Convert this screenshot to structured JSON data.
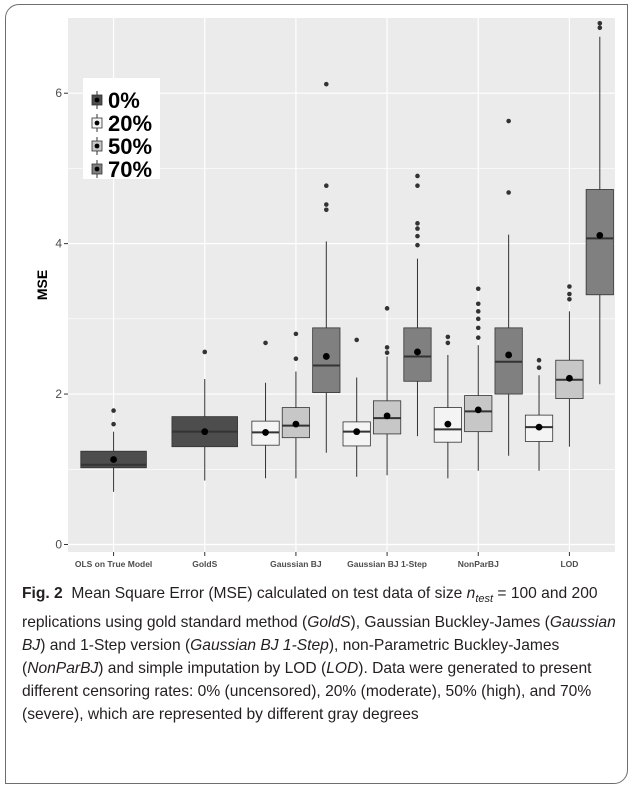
{
  "chart_data": {
    "type": "boxplot",
    "title": "",
    "xlabel": "",
    "ylabel": "MSE",
    "ylim": [
      -0.1,
      7.0
    ],
    "yticks": [
      0,
      2,
      4,
      6
    ],
    "categories": [
      "OLS on True Model",
      "GoldS",
      "Gaussian BJ",
      "Gaussian BJ 1-Step",
      "NonParBJ",
      "LOD"
    ],
    "legend": {
      "position": "top-left",
      "entries": [
        {
          "label": "0%",
          "color": "#4d4d4d"
        },
        {
          "label": "20%",
          "color": "#f4f4f4"
        },
        {
          "label": "50%",
          "color": "#c7c7c7"
        },
        {
          "label": "70%",
          "color": "#808080"
        }
      ]
    },
    "groups": [
      {
        "category": "OLS on True Model",
        "boxes": [
          {
            "censoring": "0%",
            "min": 0.7,
            "q1": 1.02,
            "median": 1.06,
            "q3": 1.24,
            "max": 1.5,
            "mean": 1.13,
            "outliers": [
              1.6,
              1.78
            ]
          }
        ]
      },
      {
        "category": "GoldS",
        "boxes": [
          {
            "censoring": "0%",
            "min": 0.85,
            "q1": 1.3,
            "median": 1.5,
            "q3": 1.7,
            "max": 2.2,
            "mean": 1.5,
            "outliers": [
              2.56
            ]
          }
        ]
      },
      {
        "category": "Gaussian BJ",
        "boxes": [
          {
            "censoring": "20%",
            "min": 0.88,
            "q1": 1.32,
            "median": 1.49,
            "q3": 1.64,
            "max": 2.15,
            "mean": 1.49,
            "outliers": [
              2.68
            ]
          },
          {
            "censoring": "50%",
            "min": 0.88,
            "q1": 1.42,
            "median": 1.58,
            "q3": 1.82,
            "max": 2.3,
            "mean": 1.6,
            "outliers": [
              2.47,
              2.8
            ]
          },
          {
            "censoring": "70%",
            "min": 1.22,
            "q1": 2.02,
            "median": 2.38,
            "q3": 2.88,
            "max": 4.03,
            "mean": 2.5,
            "outliers": [
              4.45,
              4.52,
              4.77,
              6.12
            ]
          }
        ]
      },
      {
        "category": "Gaussian BJ 1-Step",
        "boxes": [
          {
            "censoring": "20%",
            "min": 0.9,
            "q1": 1.31,
            "median": 1.5,
            "q3": 1.63,
            "max": 2.22,
            "mean": 1.5,
            "outliers": [
              2.72
            ]
          },
          {
            "censoring": "50%",
            "min": 0.92,
            "q1": 1.47,
            "median": 1.68,
            "q3": 1.91,
            "max": 2.5,
            "mean": 1.71,
            "outliers": [
              2.55,
              2.62,
              3.14
            ]
          },
          {
            "censoring": "70%",
            "min": 1.44,
            "q1": 2.17,
            "median": 2.5,
            "q3": 2.88,
            "max": 3.8,
            "mean": 2.56,
            "outliers": [
              3.98,
              4.1,
              4.2,
              4.27,
              4.77,
              4.9
            ]
          }
        ]
      },
      {
        "category": "NonParBJ",
        "boxes": [
          {
            "censoring": "20%",
            "min": 0.88,
            "q1": 1.36,
            "median": 1.53,
            "q3": 1.82,
            "max": 2.52,
            "mean": 1.6,
            "outliers": [
              2.68,
              2.76
            ]
          },
          {
            "censoring": "50%",
            "min": 0.98,
            "q1": 1.5,
            "median": 1.77,
            "q3": 1.98,
            "max": 2.65,
            "mean": 1.79,
            "outliers": [
              2.75,
              2.88,
              3.0,
              3.1,
              3.2,
              3.4
            ]
          },
          {
            "censoring": "70%",
            "min": 1.18,
            "q1": 2.0,
            "median": 2.43,
            "q3": 2.88,
            "max": 4.12,
            "mean": 2.52,
            "outliers": [
              4.68,
              5.63
            ]
          }
        ]
      },
      {
        "category": "LOD",
        "boxes": [
          {
            "censoring": "20%",
            "min": 0.98,
            "q1": 1.37,
            "median": 1.56,
            "q3": 1.72,
            "max": 2.25,
            "mean": 1.56,
            "outliers": [
              2.35,
              2.45
            ]
          },
          {
            "censoring": "50%",
            "min": 1.3,
            "q1": 1.94,
            "median": 2.19,
            "q3": 2.45,
            "max": 3.1,
            "mean": 2.21,
            "outliers": [
              3.26,
              3.33,
              3.43
            ]
          },
          {
            "censoring": "70%",
            "min": 2.13,
            "q1": 3.32,
            "median": 4.07,
            "q3": 4.72,
            "max": 6.75,
            "mean": 4.11,
            "outliers": [
              6.87,
              6.93
            ]
          }
        ]
      }
    ]
  },
  "caption": {
    "label": "Fig. 2",
    "text": "Mean Square Error (MSE) calculated on test data of size n_test = 100 and 200 replications using gold standard method (GoldS), Gaussian Buckley-James (Gaussian BJ) and 1-Step version (Gaussian BJ 1-Step), non-Parametric Buckley-James (NonParBJ) and simple imputation by LOD (LOD). Data were generated to present different censoring rates: 0% (uncensored), 20% (moderate), 50% (high), and 70% (severe), which are represented by different gray degrees"
  }
}
